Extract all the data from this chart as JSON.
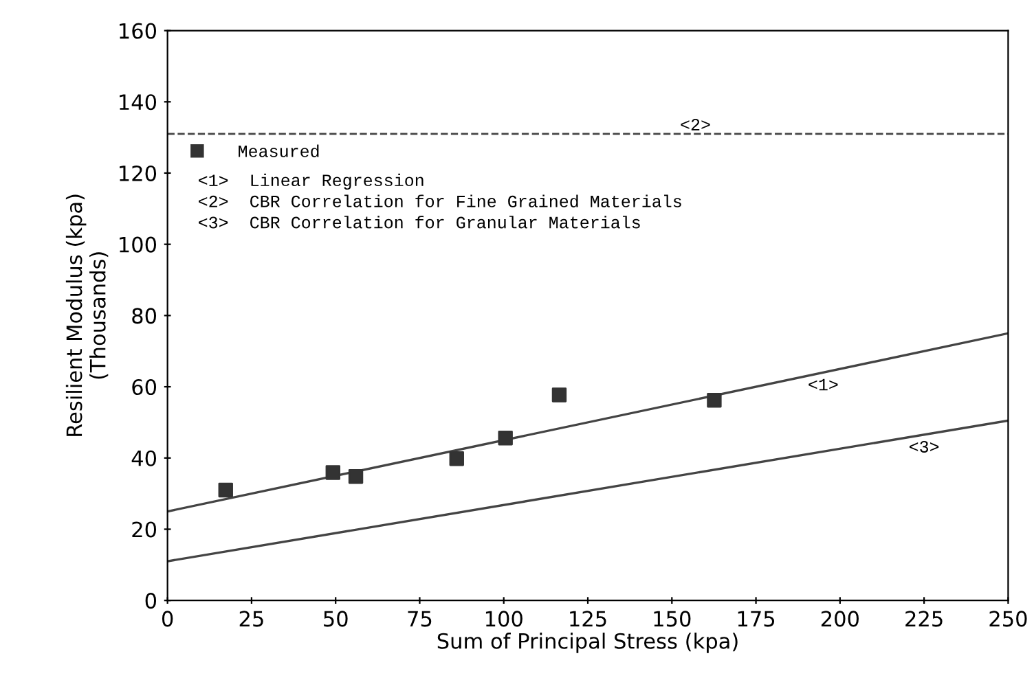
{
  "chart_data": {
    "type": "scatter",
    "xlabel": "Sum of Principal Stress (kpa)",
    "ylabel": "Resilient Modulus (kpa)\n(Thousands)",
    "series": [
      {
        "name": "Measured",
        "color": "#333333",
        "marker": "square",
        "x": [
          17.3,
          49.2,
          56,
          86,
          100.5,
          116.5,
          162.6
        ],
        "values": [
          31,
          35.9,
          34.8,
          39.8,
          45.6,
          57.7,
          56.2
        ]
      },
      {
        "type": "line",
        "color": "#444444",
        "line_style": "solid",
        "x": [
          0,
          250
        ],
        "values": [
          25,
          75
        ]
      },
      {
        "type": "line",
        "color": "#444444",
        "line_style": "solid",
        "x": [
          0,
          250
        ],
        "values": [
          11,
          50.5
        ]
      }
    ],
    "ref_lines": [
      {
        "axis": "y",
        "value": 131,
        "color": "#444444",
        "line_style": "dashed"
      }
    ],
    "annotations": [
      "<1>  Linear Regression",
      "<2>  CBR Correlation for Fine Grained Materials",
      "<3>  CBR Correlation for Granular Materials",
      {
        "text": "<2>",
        "x": 157,
        "y": 131
      },
      {
        "text": "<1>",
        "x": 195,
        "y": 64
      },
      {
        "text": "<3>",
        "x": 225,
        "y": 46.55
      }
    ],
    "xlim": [
      0,
      250
    ],
    "xticks": [
      0,
      25,
      50,
      75,
      100,
      125,
      150,
      175,
      200,
      225,
      250
    ],
    "ylim": [
      0,
      160
    ],
    "yticks": [
      0,
      20,
      40,
      60,
      80,
      100,
      120,
      140,
      160
    ],
    "grid": false,
    "legend": "top left"
  }
}
